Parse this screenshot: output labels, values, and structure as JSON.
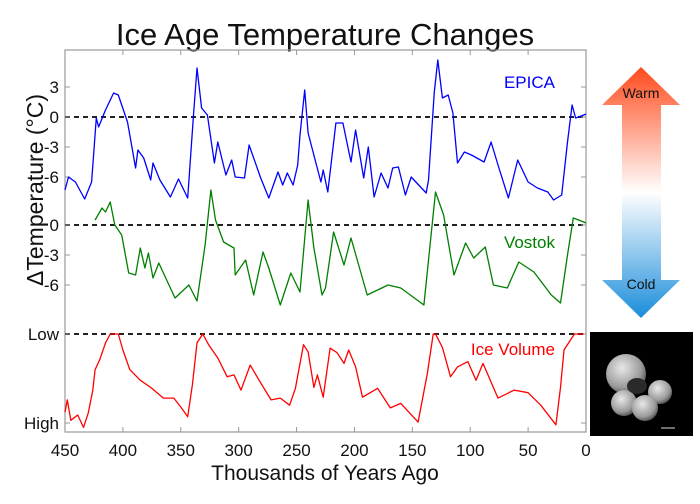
{
  "chart_data": {
    "type": "line",
    "title": "Ice Age Temperature Changes",
    "xlabel": "Thousands of Years Ago",
    "ylabel": "ΔTemperature (°C)",
    "xlim": [
      450,
      0
    ],
    "x_ticks": [
      450,
      400,
      350,
      300,
      250,
      200,
      150,
      100,
      50,
      0
    ],
    "grid": false,
    "panels": [
      {
        "name": "EPICA",
        "color": "#0000ff",
        "y_ticks": [
          3,
          0,
          -3,
          -6
        ],
        "reference_line": 0,
        "x": [
          450,
          447,
          441,
          433,
          427,
          423,
          421,
          415,
          408,
          404,
          396,
          389,
          387,
          382,
          376,
          374,
          368,
          359,
          352,
          344,
          339,
          336,
          332,
          327,
          321,
          318,
          311,
          306,
          303,
          295,
          291,
          281,
          274,
          266,
          262,
          258,
          253,
          249,
          247,
          243,
          240,
          229,
          227,
          223,
          216,
          210,
          203,
          199,
          192,
          188,
          183,
          177,
          171,
          167,
          162,
          156,
          151,
          138,
          136,
          131,
          128,
          124,
          119,
          115,
          111,
          105,
          99,
          88,
          82,
          76,
          67,
          59,
          50,
          42,
          33,
          28,
          21,
          16,
          12,
          9,
          2,
          0
        ],
        "y": [
          -7.3,
          -6,
          -6.5,
          -8.2,
          -6.5,
          -0.1,
          -1,
          0.7,
          2.4,
          2.2,
          -0.5,
          -5.1,
          -3.3,
          -4.1,
          -6.3,
          -4.6,
          -6.3,
          -8,
          -6.2,
          -8.1,
          0.2,
          4.9,
          0.9,
          0.2,
          -4.6,
          -2.5,
          -5.8,
          -4.3,
          -6,
          -6.1,
          -2.8,
          -6.1,
          -8.1,
          -5.5,
          -6.8,
          -5.6,
          -6.8,
          -4.8,
          -1.8,
          2.7,
          -1.6,
          -6.5,
          -5.3,
          -7.5,
          -0.6,
          -0.6,
          -4.5,
          -1.3,
          -6.1,
          -3,
          -8,
          -5.6,
          -7.1,
          -5.1,
          -5,
          -7.8,
          -6,
          -7.6,
          -6.3,
          2.5,
          5.7,
          1.9,
          2.2,
          0.4,
          -4.6,
          -3.5,
          -3.8,
          -4.5,
          -2.5,
          -4.8,
          -8.1,
          -4.3,
          -6.5,
          -7.1,
          -7.5,
          -8.3,
          -7.8,
          -2.5,
          1.2,
          -0.1,
          0.2,
          0.3
        ]
      },
      {
        "name": "Vostok",
        "color": "#008000",
        "y_ticks": [
          0,
          -3,
          -6
        ],
        "reference_line": 0,
        "x": [
          424,
          418,
          415,
          411,
          407,
          401,
          395,
          389,
          385,
          381,
          378,
          374,
          369,
          355,
          343,
          336,
          329,
          324,
          320,
          313,
          304,
          303,
          294,
          287,
          279,
          274,
          264,
          255,
          247,
          240,
          235,
          228,
          225,
          218,
          209,
          203,
          189,
          171,
          160,
          140,
          130,
          123,
          114,
          104,
          97,
          87,
          80,
          68,
          58,
          45,
          30,
          22,
          16,
          11,
          2,
          0
        ],
        "y": [
          0.5,
          1.7,
          1.3,
          2.3,
          0,
          -1,
          -4.8,
          -5,
          -2.3,
          -4.3,
          -2.8,
          -5.3,
          -3.8,
          -7.3,
          -6,
          -7.6,
          -2,
          3.5,
          0.5,
          -1.7,
          -2.3,
          -5,
          -3.5,
          -7,
          -2.7,
          -4.3,
          -8,
          -4.8,
          -6.7,
          2.5,
          -2.3,
          -7,
          -6.3,
          -0.7,
          -4,
          -1.3,
          -7,
          -6,
          -6.3,
          -8,
          3.3,
          1,
          -5,
          -1.8,
          -3.3,
          -2.2,
          -6,
          -6.3,
          -3.7,
          -4.7,
          -7,
          -7.8,
          -3,
          0.7,
          0.3,
          0.2
        ]
      },
      {
        "name": "Ice Volume",
        "color": "#ff0000",
        "y_tick_labels": [
          "Low",
          "High"
        ],
        "y_ticks": [
          0,
          1
        ],
        "reference_line": 0,
        "x": [
          450,
          448,
          445,
          439,
          434,
          430,
          426,
          424,
          420,
          415,
          411,
          404,
          400,
          394,
          385,
          376,
          365,
          356,
          350,
          344,
          340,
          336,
          331,
          326,
          318,
          310,
          304,
          298,
          290,
          281,
          272,
          264,
          256,
          251,
          244,
          240,
          235,
          232,
          227,
          221,
          215,
          209,
          205,
          199,
          193,
          180,
          169,
          160,
          145,
          137,
          132,
          130,
          124,
          117,
          111,
          102,
          95,
          89,
          76,
          62,
          50,
          39,
          26,
          22,
          19,
          10,
          2
        ],
        "y": [
          0.88,
          0.74,
          0.97,
          0.91,
          1.05,
          0.89,
          0.63,
          0.4,
          0.29,
          0.1,
          0,
          0,
          0.18,
          0.4,
          0.52,
          0.6,
          0.72,
          0.72,
          0.82,
          0.93,
          0.57,
          0.1,
          0,
          0.12,
          0.27,
          0.48,
          0.46,
          0.63,
          0.35,
          0.55,
          0.74,
          0.72,
          0.8,
          0.61,
          0.12,
          0.2,
          0.6,
          0.46,
          0.71,
          0.16,
          0.21,
          0.33,
          0.18,
          0.37,
          0.71,
          0.61,
          0.83,
          0.78,
          0.99,
          0.44,
          0,
          0,
          0.15,
          0.48,
          0.37,
          0.31,
          0.52,
          0.33,
          0.72,
          0.63,
          0.66,
          0.8,
          1.02,
          0.6,
          0.18,
          0,
          0
        ]
      }
    ]
  },
  "indicator": {
    "warm_label": "Warm",
    "cold_label": "Cold",
    "warm_color": "#ff4a1c",
    "cold_color": "#1a8ddb"
  },
  "image": {
    "subject": "foraminifera micrograph"
  }
}
